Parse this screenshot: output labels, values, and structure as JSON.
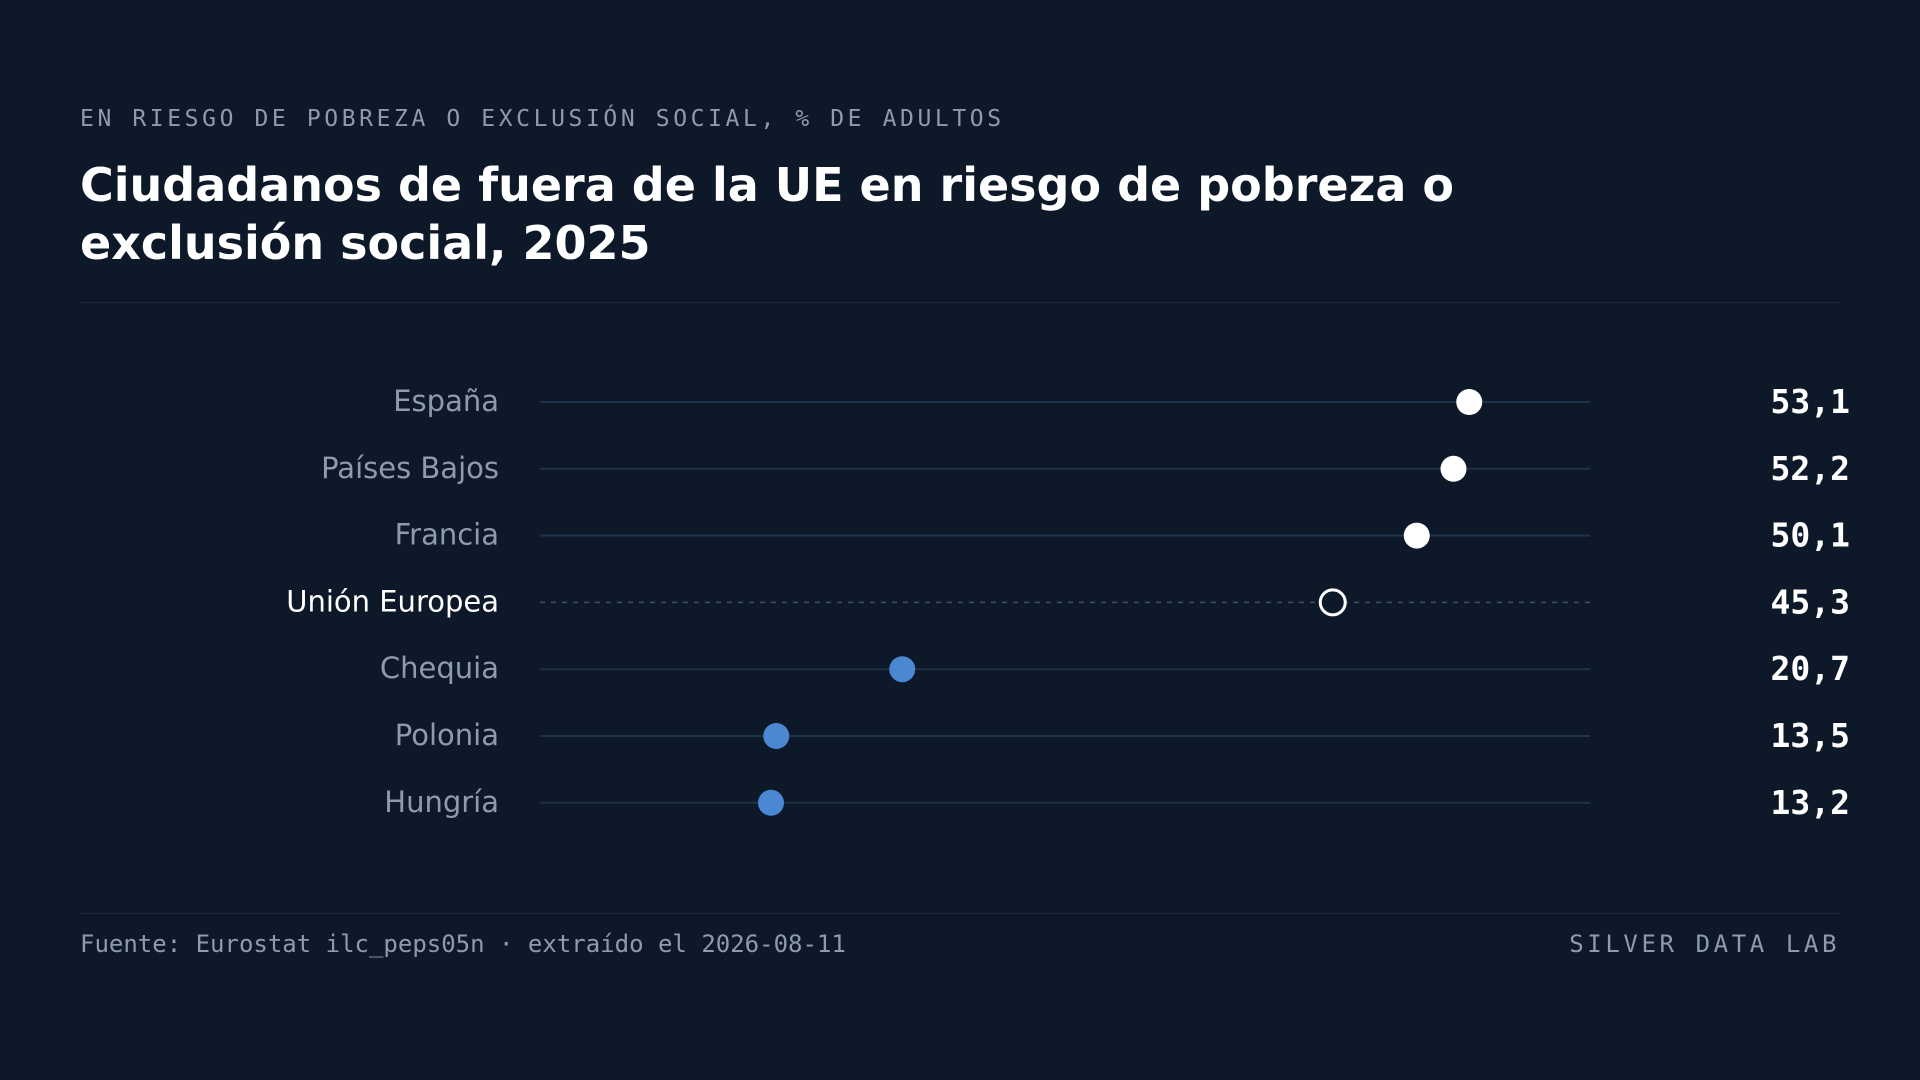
{
  "header": {
    "kicker": "EN RIESGO DE POBREZA O EXCLUSIÓN SOCIAL, % DE ADULTOS",
    "title": "Ciudadanos de fuera de la UE en riesgo de pobreza o exclusión social, 2025"
  },
  "footer": {
    "source": "Fuente: Eurostat ilc_peps05n · extraído el 2026-08-11",
    "brand": "SILVER DATA LAB"
  },
  "colors": {
    "background": "#0d1829",
    "dot_high": "#ffffff",
    "dot_low": "#4a88d2",
    "track": "#1e3349",
    "label": "#8e9ab0",
    "label_highlight": "#ffffff",
    "value": "#ffffff"
  },
  "chart_data": {
    "type": "dot",
    "title": "Ciudadanos de fuera de la UE en riesgo de pobreza o exclusión social, 2025",
    "xlim": [
      0,
      60
    ],
    "grid": false,
    "categories": [
      "España",
      "Países Bajos",
      "Francia",
      "Unión Europea",
      "Chequia",
      "Polonia",
      "Hungría"
    ],
    "values": [
      53.1,
      52.2,
      50.1,
      45.3,
      20.7,
      13.5,
      13.2
    ],
    "value_labels": [
      "53,1",
      "52,2",
      "50,1",
      "45,3",
      "20,7",
      "13,5",
      "13,2"
    ],
    "highlight": "Unión Europea"
  }
}
